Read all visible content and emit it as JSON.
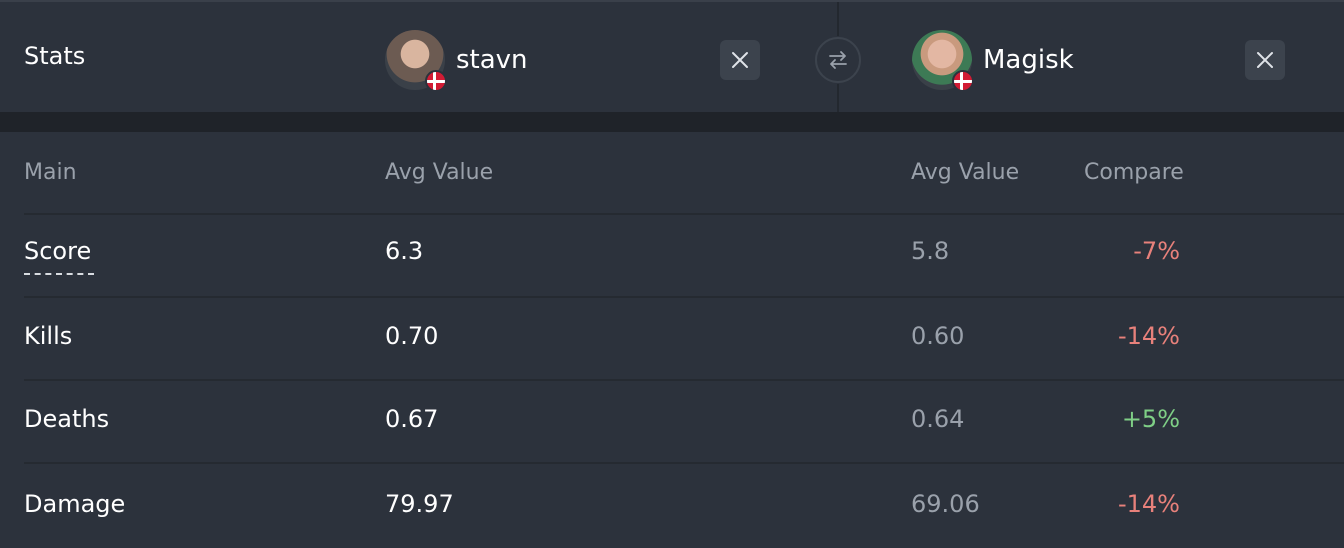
{
  "header": {
    "title": "Stats",
    "player1": {
      "name": "stavn",
      "country": "Denmark"
    },
    "player2": {
      "name": "Magisk",
      "country": "Denmark"
    }
  },
  "table": {
    "headers": {
      "section": "Main",
      "col1": "Avg Value",
      "col2": "Avg Value",
      "compare": "Compare"
    },
    "rows": [
      {
        "label": "Score",
        "v1": "6.3",
        "v2": "5.8",
        "compare": "-7%",
        "trend": "neg"
      },
      {
        "label": "Kills",
        "v1": "0.70",
        "v2": "0.60",
        "compare": "-14%",
        "trend": "neg"
      },
      {
        "label": "Deaths",
        "v1": "0.67",
        "v2": "0.64",
        "compare": "+5%",
        "trend": "pos"
      },
      {
        "label": "Damage",
        "v1": "79.97",
        "v2": "69.06",
        "compare": "-14%",
        "trend": "neg"
      }
    ]
  },
  "colors": {
    "negative": "#e8817b",
    "positive": "#7fcf86",
    "background": "#2c323c"
  }
}
